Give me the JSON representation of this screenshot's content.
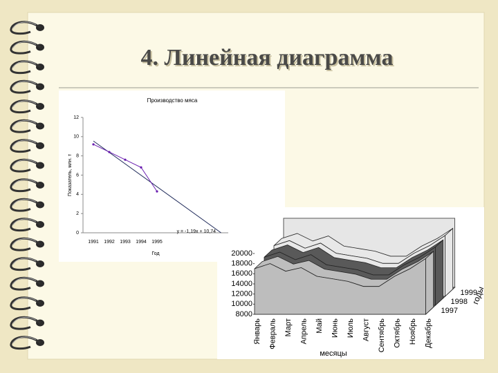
{
  "slide": {
    "title": "4. Линейная диаграмма"
  },
  "chart_data": [
    {
      "type": "line",
      "title": "Производство мяса",
      "y_label": "Показатель, млн. т",
      "x_label": "Год",
      "categories": [
        "1991",
        "1992",
        "1993",
        "1994",
        "1995"
      ],
      "series": [
        {
          "color": "#6a1fb0",
          "values": [
            9.2,
            8.4,
            7.6,
            6.8,
            4.3
          ]
        }
      ],
      "trendline": {
        "slope": -1.19,
        "intercept": 10.74,
        "label": "y = -1,19x + 10,74",
        "color": "#1f2a5a"
      },
      "ylim": [
        0,
        12
      ],
      "yticks": [
        0,
        2,
        4,
        6,
        8,
        10,
        12
      ]
    },
    {
      "type": "area3d",
      "x_label": "месяцы",
      "z_label": "годы",
      "categories": [
        "Январь",
        "Февраль",
        "Март",
        "Апрель",
        "Май",
        "Июнь",
        "Июль",
        "Август",
        "Сентябрь",
        "Октябрь",
        "Ноябрь",
        "Декабрь"
      ],
      "series": [
        {
          "name": "1997",
          "color": "#bdbdbd",
          "values": [
            17000,
            18000,
            16500,
            17200,
            15500,
            15000,
            14500,
            13500,
            13500,
            15500,
            17000,
            19000
          ]
        },
        {
          "name": "1998",
          "color": "#595959",
          "values": [
            17500,
            18500,
            17000,
            18000,
            16000,
            15500,
            15000,
            14000,
            14000,
            16000,
            17500,
            19500
          ]
        },
        {
          "name": "1999",
          "color": "#e8e8e8",
          "values": [
            18000,
            19000,
            17500,
            18500,
            16500,
            16000,
            15500,
            14500,
            14500,
            16500,
            18000,
            20000
          ]
        }
      ],
      "ylim": [
        8000,
        20000
      ],
      "yticks": [
        8000,
        10000,
        12000,
        14000,
        16000,
        18000,
        20000
      ]
    }
  ]
}
